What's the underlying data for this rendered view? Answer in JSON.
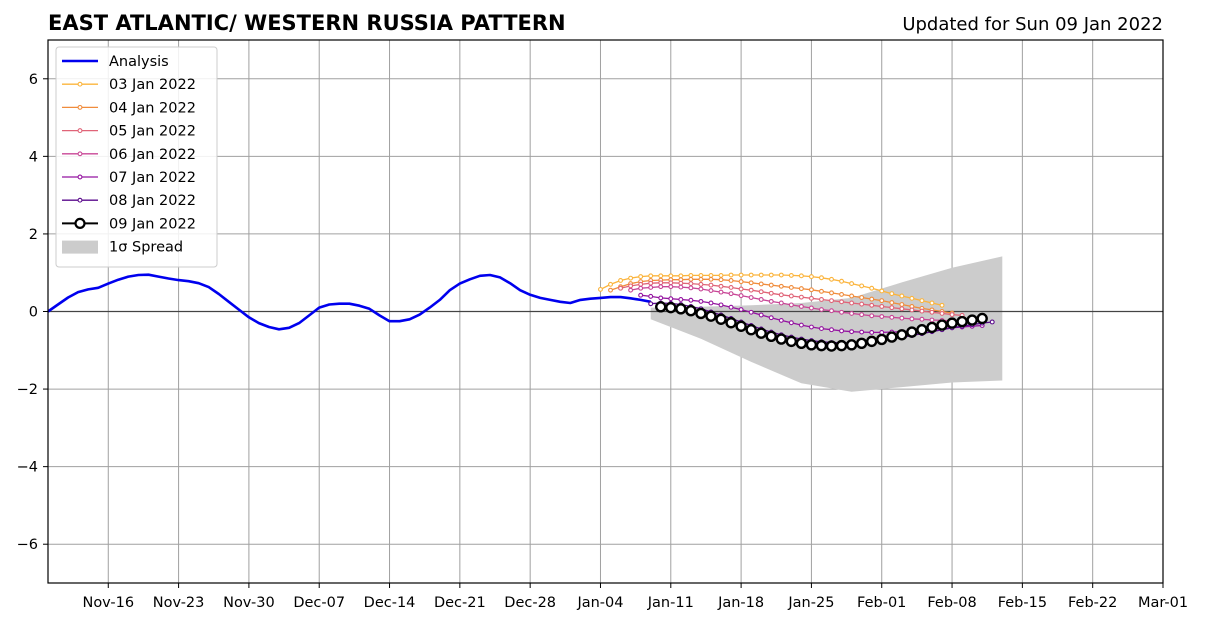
{
  "chart_data": {
    "type": "line",
    "title": "EAST ATLANTIC/ WESTERN RUSSIA PATTERN",
    "subtitle": "Updated for Sun 09 Jan 2022",
    "xlabel": "",
    "ylabel": "",
    "x_start": "2021-11-10",
    "x_end": "2022-03-01",
    "x_ticks": [
      {
        "date": "2021-11-16",
        "label": "Nov-16"
      },
      {
        "date": "2021-11-23",
        "label": "Nov-23"
      },
      {
        "date": "2021-11-30",
        "label": "Nov-30"
      },
      {
        "date": "2021-12-07",
        "label": "Dec-07"
      },
      {
        "date": "2021-12-14",
        "label": "Dec-14"
      },
      {
        "date": "2021-12-21",
        "label": "Dec-21"
      },
      {
        "date": "2021-12-28",
        "label": "Dec-28"
      },
      {
        "date": "2022-01-04",
        "label": "Jan-04"
      },
      {
        "date": "2022-01-11",
        "label": "Jan-11"
      },
      {
        "date": "2022-01-18",
        "label": "Jan-18"
      },
      {
        "date": "2022-01-25",
        "label": "Jan-25"
      },
      {
        "date": "2022-02-01",
        "label": "Feb-01"
      },
      {
        "date": "2022-02-08",
        "label": "Feb-08"
      },
      {
        "date": "2022-02-15",
        "label": "Feb-15"
      },
      {
        "date": "2022-02-22",
        "label": "Feb-22"
      },
      {
        "date": "2022-03-01",
        "label": "Mar-01"
      }
    ],
    "y_ticks": [
      {
        "value": 6,
        "label": "6"
      },
      {
        "value": 4,
        "label": "4"
      },
      {
        "value": 2,
        "label": "2"
      },
      {
        "value": 0,
        "label": "0"
      },
      {
        "value": -2,
        "label": "−2"
      },
      {
        "value": -4,
        "label": "−4"
      },
      {
        "value": -6,
        "label": "−6"
      }
    ],
    "ylim": [
      -7,
      7
    ],
    "grid": true,
    "legend_position": "top-left",
    "analysis": {
      "name": "Analysis",
      "color": "#0000ee",
      "start": "2021-11-10",
      "values": [
        0.0,
        0.18,
        0.36,
        0.5,
        0.57,
        0.61,
        0.72,
        0.82,
        0.9,
        0.94,
        0.95,
        0.9,
        0.85,
        0.81,
        0.78,
        0.73,
        0.63,
        0.45,
        0.25,
        0.05,
        -0.15,
        -0.3,
        -0.4,
        -0.46,
        -0.42,
        -0.3,
        -0.1,
        0.1,
        0.18,
        0.2,
        0.2,
        0.15,
        0.07,
        -0.1,
        -0.25,
        -0.25,
        -0.2,
        -0.08,
        0.1,
        0.3,
        0.55,
        0.72,
        0.83,
        0.92,
        0.94,
        0.88,
        0.73,
        0.55,
        0.43,
        0.35,
        0.3,
        0.25,
        0.22,
        0.3,
        0.33,
        0.35,
        0.37,
        0.37,
        0.34,
        0.3,
        0.25
      ]
    },
    "forecasts": [
      {
        "name": "03 Jan 2022",
        "color": "#fbb43c",
        "start": "2022-01-04",
        "values": [
          0.57,
          0.7,
          0.8,
          0.86,
          0.9,
          0.92,
          0.92,
          0.92,
          0.92,
          0.93,
          0.93,
          0.93,
          0.93,
          0.94,
          0.94,
          0.94,
          0.94,
          0.94,
          0.94,
          0.93,
          0.92,
          0.9,
          0.87,
          0.83,
          0.78,
          0.72,
          0.66,
          0.6,
          0.53,
          0.46,
          0.4,
          0.34,
          0.28,
          0.22,
          0.16
        ]
      },
      {
        "name": "04 Jan 2022",
        "color": "#f08c3c",
        "start": "2022-01-05",
        "values": [
          0.55,
          0.64,
          0.72,
          0.77,
          0.8,
          0.81,
          0.82,
          0.82,
          0.83,
          0.83,
          0.83,
          0.82,
          0.8,
          0.77,
          0.74,
          0.71,
          0.68,
          0.65,
          0.62,
          0.59,
          0.56,
          0.52,
          0.48,
          0.44,
          0.4,
          0.36,
          0.32,
          0.28,
          0.23,
          0.18,
          0.13,
          0.08,
          0.04,
          0.0,
          -0.04
        ]
      },
      {
        "name": "05 Jan 2022",
        "color": "#e06478",
        "start": "2022-01-06",
        "values": [
          0.6,
          0.66,
          0.7,
          0.73,
          0.74,
          0.74,
          0.73,
          0.72,
          0.7,
          0.68,
          0.65,
          0.62,
          0.58,
          0.55,
          0.51,
          0.47,
          0.43,
          0.4,
          0.37,
          0.34,
          0.31,
          0.28,
          0.25,
          0.22,
          0.19,
          0.16,
          0.13,
          0.1,
          0.07,
          0.04,
          0.01,
          -0.02,
          -0.05,
          -0.08,
          -0.1
        ]
      },
      {
        "name": "06 Jan 2022",
        "color": "#c84696",
        "start": "2022-01-07",
        "values": [
          0.55,
          0.6,
          0.62,
          0.64,
          0.64,
          0.63,
          0.61,
          0.58,
          0.54,
          0.5,
          0.46,
          0.41,
          0.36,
          0.31,
          0.26,
          0.22,
          0.17,
          0.13,
          0.09,
          0.05,
          0.02,
          -0.02,
          -0.05,
          -0.08,
          -0.11,
          -0.13,
          -0.15,
          -0.17,
          -0.19,
          -0.2,
          -0.22,
          -0.23,
          -0.24,
          -0.25,
          -0.26
        ]
      },
      {
        "name": "07 Jan 2022",
        "color": "#9414a0",
        "start": "2022-01-08",
        "values": [
          0.42,
          0.39,
          0.35,
          0.33,
          0.31,
          0.29,
          0.26,
          0.22,
          0.17,
          0.11,
          0.05,
          -0.02,
          -0.09,
          -0.16,
          -0.23,
          -0.29,
          -0.35,
          -0.4,
          -0.44,
          -0.47,
          -0.5,
          -0.52,
          -0.53,
          -0.54,
          -0.54,
          -0.53,
          -0.52,
          -0.5,
          -0.48,
          -0.46,
          -0.44,
          -0.42,
          -0.4,
          -0.38,
          -0.36
        ]
      },
      {
        "name": "08 Jan 2022",
        "color": "#5a0a8c",
        "start": "2022-01-09",
        "values": [
          0.2,
          0.22,
          0.21,
          0.18,
          0.13,
          0.07,
          -0.01,
          -0.09,
          -0.18,
          -0.27,
          -0.36,
          -0.45,
          -0.53,
          -0.6,
          -0.66,
          -0.71,
          -0.75,
          -0.78,
          -0.8,
          -0.81,
          -0.81,
          -0.8,
          -0.78,
          -0.75,
          -0.71,
          -0.67,
          -0.62,
          -0.57,
          -0.52,
          -0.47,
          -0.42,
          -0.38,
          -0.34,
          -0.3,
          -0.27
        ]
      },
      {
        "name": "09 Jan 2022",
        "color": "#000000",
        "start": "2022-01-10",
        "values": [
          0.12,
          0.1,
          0.07,
          0.02,
          -0.05,
          -0.12,
          -0.2,
          -0.29,
          -0.38,
          -0.47,
          -0.56,
          -0.64,
          -0.71,
          -0.77,
          -0.82,
          -0.86,
          -0.88,
          -0.89,
          -0.88,
          -0.86,
          -0.82,
          -0.77,
          -0.72,
          -0.66,
          -0.6,
          -0.53,
          -0.47,
          -0.41,
          -0.35,
          -0.3,
          -0.26,
          -0.22,
          -0.18
        ]
      }
    ],
    "spread": {
      "name": "1σ Spread",
      "color": "#cccccc",
      "dates": [
        "2022-01-09",
        "2022-01-14",
        "2022-01-19",
        "2022-01-24",
        "2022-01-29",
        "2022-02-03",
        "2022-02-08",
        "2022-02-13"
      ],
      "upper": [
        0.1,
        0.12,
        0.16,
        0.22,
        0.35,
        0.75,
        1.13,
        1.42
      ],
      "lower": [
        -0.2,
        -0.7,
        -1.3,
        -1.85,
        -2.07,
        -1.95,
        -1.83,
        -1.78
      ]
    }
  }
}
